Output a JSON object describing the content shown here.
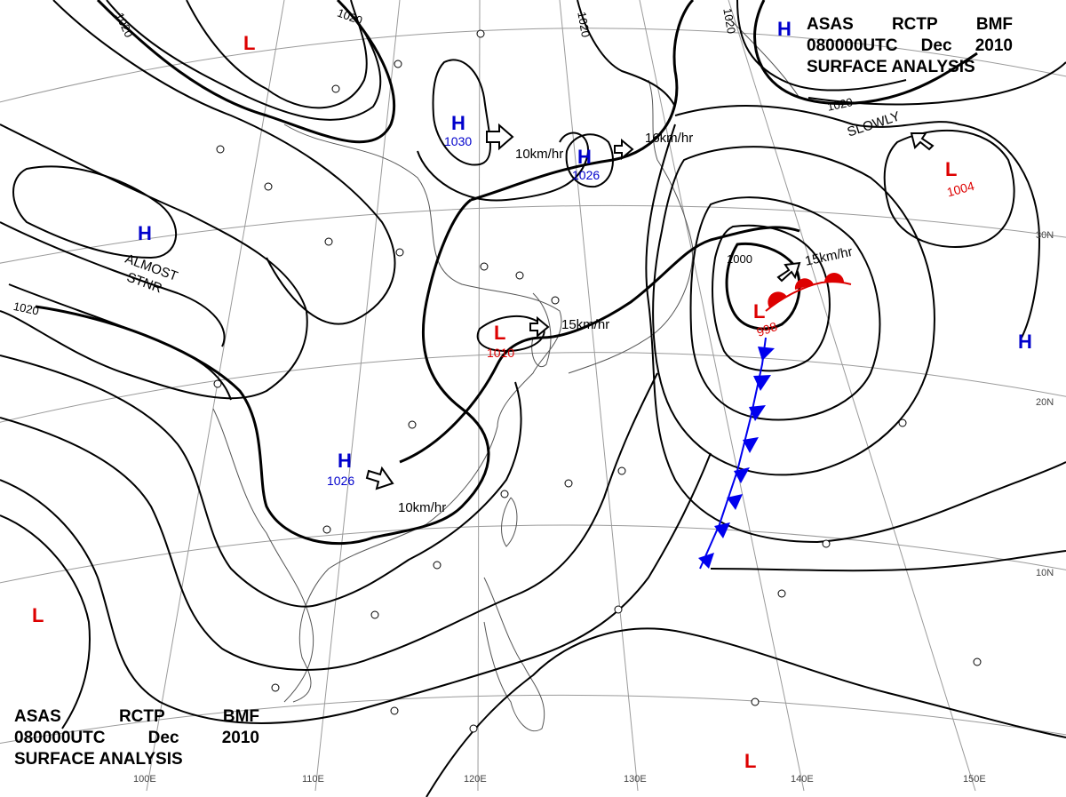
{
  "header_top": {
    "line1": [
      "ASAS",
      "RCTP",
      "BMF"
    ],
    "line2": [
      "080000UTC",
      "Dec",
      "2010"
    ],
    "line3": "SURFACE ANALYSIS"
  },
  "header_bottom": {
    "line1": [
      "ASAS",
      "RCTP",
      "BMF"
    ],
    "line2": [
      "080000UTC",
      "Dec",
      "2010"
    ],
    "line3": "SURFACE ANALYSIS"
  },
  "colors": {
    "high": "#0000cc",
    "low": "#dd0000",
    "isobar": "#000000",
    "grid": "#9a9a9a",
    "coast": "#555555",
    "front_cold": "#0000ee",
    "front_warm": "#dd0000"
  },
  "pressure_centers": [
    {
      "type": "H",
      "value": "1030"
    },
    {
      "type": "H",
      "value": "1026"
    },
    {
      "type": "H",
      "value": "1026"
    },
    {
      "type": "H",
      "value": ""
    },
    {
      "type": "H",
      "value": ""
    },
    {
      "type": "H",
      "value": ""
    },
    {
      "type": "L",
      "value": "1010"
    },
    {
      "type": "L",
      "value": "998"
    },
    {
      "type": "L",
      "value": "1004"
    },
    {
      "type": "L",
      "value": ""
    },
    {
      "type": "L",
      "value": ""
    },
    {
      "type": "L",
      "value": ""
    }
  ],
  "isobar_labels": [
    "1020",
    "1020",
    "1020",
    "1020",
    "1020",
    "1000"
  ],
  "movement_labels": [
    "10km/hr",
    "16km/hr",
    "15km/hr",
    "15km/hr",
    "10km/hr",
    "SLOWLY"
  ],
  "stationary_label": [
    "ALMOST",
    "STNR"
  ],
  "lon_labels": [
    "110E",
    "120E",
    "130E",
    "140E",
    "150E",
    "100E"
  ],
  "lat_labels": [
    "30N",
    "20N",
    "10N"
  ],
  "front_types": [
    "warm",
    "cold"
  ]
}
